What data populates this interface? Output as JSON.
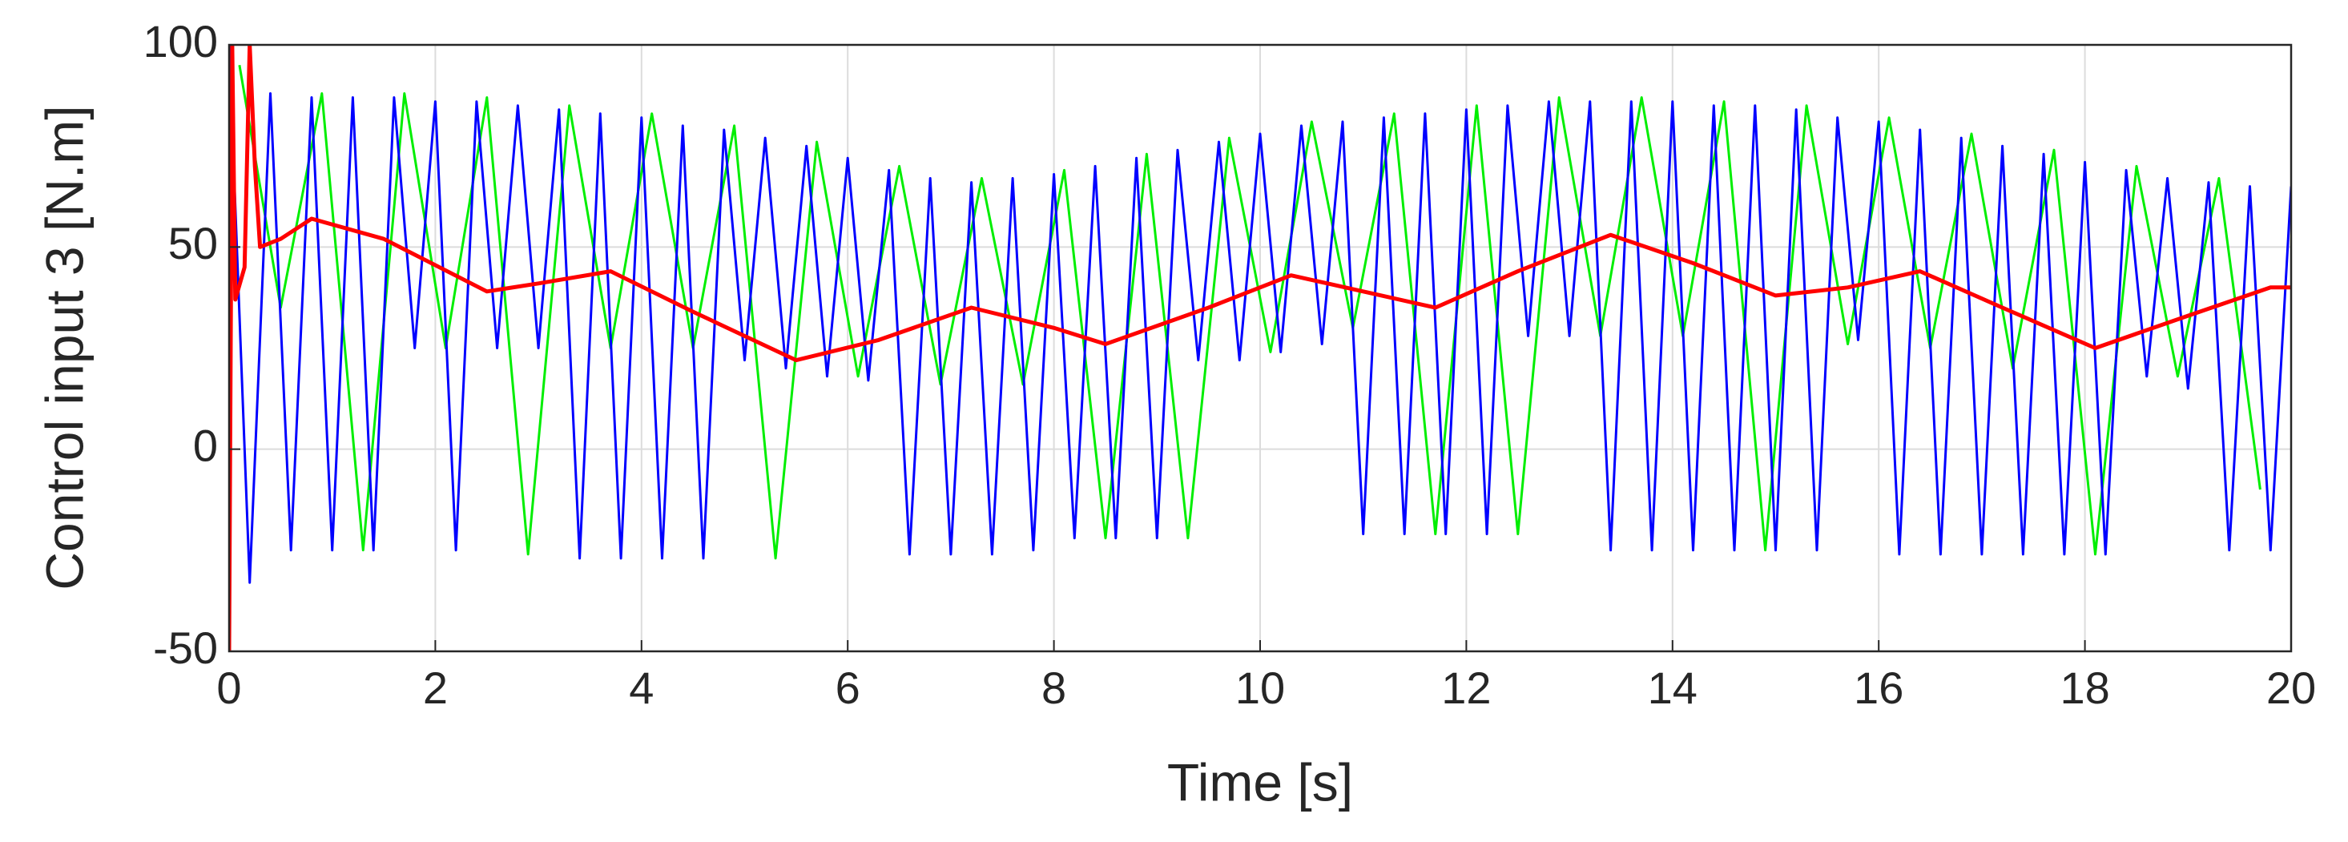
{
  "chart_data": {
    "type": "line",
    "xlabel": "Time [s]",
    "ylabel": "Control input 3 [N.m]",
    "xlim": [
      0,
      20
    ],
    "ylim": [
      -50,
      100
    ],
    "xticks": [
      0,
      2,
      4,
      6,
      8,
      10,
      12,
      14,
      16,
      18,
      20
    ],
    "yticks": [
      -50,
      0,
      50,
      100
    ],
    "grid": true,
    "series": [
      {
        "color": "#00ee00",
        "x": [
          0.1,
          0.5,
          0.9,
          1.3,
          1.7,
          2.1,
          2.5,
          2.9,
          3.3,
          3.7,
          4.1,
          4.5,
          4.9,
          5.3,
          5.7,
          6.1,
          6.5,
          6.9,
          7.3,
          7.7,
          8.1,
          8.5,
          8.9,
          9.3,
          9.7,
          10.1,
          10.5,
          10.9,
          11.3,
          11.7,
          12.1,
          12.5,
          12.9,
          13.3,
          13.7,
          14.1,
          14.5,
          14.9,
          15.3,
          15.7,
          16.1,
          16.5,
          16.9,
          17.3,
          17.7,
          18.1,
          18.5,
          18.9,
          19.3,
          19.7
        ],
        "values": [
          95,
          35,
          88,
          -25,
          88,
          25,
          87,
          -26,
          85,
          25,
          83,
          25,
          80,
          -27,
          76,
          18,
          70,
          16,
          67,
          16,
          69,
          -22,
          73,
          -22,
          77,
          24,
          81,
          30,
          83,
          -21,
          85,
          -21,
          87,
          28,
          87,
          28,
          86,
          -25,
          85,
          26,
          82,
          25,
          78,
          20,
          74,
          -26,
          70,
          18,
          67,
          -10
        ]
      },
      {
        "color": "#0000ff",
        "x": [
          0,
          0.2,
          0.4,
          0.6,
          0.8,
          1,
          1.2,
          1.4,
          1.6,
          1.8,
          2,
          2.2,
          2.4,
          2.6,
          2.8,
          3,
          3.2,
          3.4,
          3.6,
          3.8,
          4,
          4.2,
          4.4,
          4.6,
          4.8,
          5,
          5.2,
          5.4,
          5.6,
          5.8,
          6,
          6.2,
          6.4,
          6.6,
          6.8,
          7,
          7.2,
          7.4,
          7.6,
          7.8,
          8,
          8.2,
          8.4,
          8.6,
          8.8,
          9,
          9.2,
          9.4,
          9.6,
          9.8,
          10,
          10.2,
          10.4,
          10.6,
          10.8,
          11,
          11.2,
          11.4,
          11.6,
          11.8,
          12,
          12.2,
          12.4,
          12.6,
          12.8,
          13,
          13.2,
          13.4,
          13.6,
          13.8,
          14,
          14.2,
          14.4,
          14.6,
          14.8,
          15,
          15.2,
          15.4,
          15.6,
          15.8,
          16,
          16.2,
          16.4,
          16.6,
          16.8,
          17,
          17.2,
          17.4,
          17.6,
          17.8,
          18,
          18.2,
          18.4,
          18.6,
          18.8,
          19,
          19.2,
          19.4,
          19.6,
          19.8,
          20
        ],
        "values": [
          100,
          -33,
          88,
          -25,
          87,
          -25,
          87,
          -25,
          87,
          25,
          86,
          -25,
          86,
          25,
          85,
          25,
          84,
          -27,
          83,
          -27,
          82,
          -27,
          80,
          -27,
          79,
          22,
          77,
          20,
          75,
          18,
          72,
          17,
          69,
          -26,
          67,
          -26,
          66,
          -26,
          67,
          -25,
          68,
          -22,
          70,
          -22,
          72,
          -22,
          74,
          22,
          76,
          22,
          78,
          24,
          80,
          26,
          81,
          -21,
          82,
          -21,
          83,
          -21,
          84,
          -21,
          85,
          28,
          86,
          28,
          86,
          -25,
          86,
          -25,
          86,
          -25,
          85,
          -25,
          85,
          -25,
          84,
          -25,
          82,
          27,
          81,
          -26,
          79,
          -26,
          77,
          -26,
          75,
          -26,
          73,
          -26,
          71,
          -26,
          69,
          18,
          67,
          15,
          66,
          -25,
          65,
          -25,
          65
        ]
      },
      {
        "color": "#ff0000",
        "x": [
          0,
          0.03,
          0.06,
          0.15,
          0.2,
          0.25,
          0.3,
          0.5,
          0.8,
          1.5,
          2.5,
          3.0,
          3.7,
          4.5,
          5.5,
          6.3,
          7.2,
          8.0,
          8.5,
          9.5,
          10.3,
          11.0,
          11.7,
          12.5,
          13.4,
          14.2,
          15.0,
          15.7,
          16.4,
          17.2,
          18.1,
          19.0,
          19.8,
          20
        ],
        "values": [
          -50,
          100,
          37,
          45,
          100,
          70,
          50,
          52,
          57,
          52,
          39,
          41,
          44,
          34,
          22,
          27,
          35,
          30,
          26,
          35,
          43,
          39,
          35,
          44,
          53,
          46,
          38,
          40,
          44,
          35,
          25,
          33,
          40,
          40
        ]
      }
    ]
  }
}
